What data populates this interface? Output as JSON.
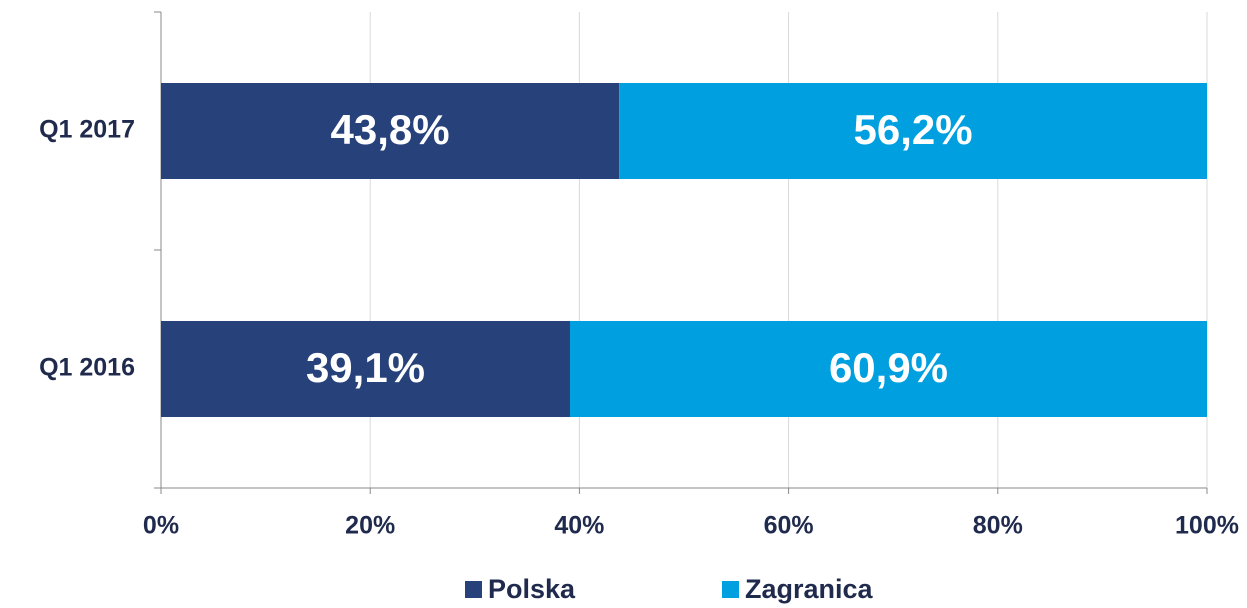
{
  "chart_data": {
    "type": "bar",
    "orientation": "horizontal",
    "stacked": true,
    "categories": [
      "Q1 2017",
      "Q1 2016"
    ],
    "series": [
      {
        "name": "Polska",
        "color": "#27417a",
        "values": [
          43.8,
          39.1
        ],
        "value_labels": [
          "43,8%",
          "39,1%"
        ]
      },
      {
        "name": "Zagranica",
        "color": "#009fe0",
        "values": [
          56.2,
          60.9
        ],
        "value_labels": [
          "56,2%",
          "60,9%"
        ]
      }
    ],
    "xlim": [
      0,
      100
    ],
    "xticks": [
      {
        "value": 0,
        "label": "0%"
      },
      {
        "value": 20,
        "label": "20%"
      },
      {
        "value": 40,
        "label": "40%"
      },
      {
        "value": 60,
        "label": "60%"
      },
      {
        "value": 80,
        "label": "80%"
      },
      {
        "value": 100,
        "label": "100%"
      }
    ],
    "grid": true,
    "legend": "bottom"
  }
}
